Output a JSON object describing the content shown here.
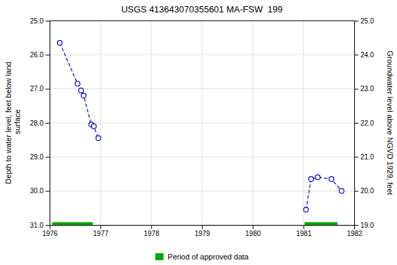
{
  "chart_data": {
    "type": "line",
    "title": "USGS 413643070355601 MA-FSW  199",
    "ylabel": "Depth to water level, feet below land\n surface",
    "y2label": "Groundwater level above NGVD 1929, feet",
    "series": [
      {
        "x": [
          1976.2,
          1976.55,
          1976.62,
          1976.67,
          1976.82,
          1976.87,
          1976.96
        ],
        "values": [
          25.65,
          26.85,
          27.05,
          27.2,
          28.05,
          28.1,
          28.45
        ],
        "color": "#0000cc",
        "marker": "circle-open",
        "line_style": "dashed"
      },
      {
        "x": [
          1981.05,
          1981.15,
          1981.28,
          1981.55,
          1981.75
        ],
        "values": [
          30.55,
          29.65,
          29.6,
          29.65,
          30.0
        ],
        "color": "#0000cc",
        "marker": "circle-open",
        "line_style": "dashed"
      }
    ],
    "xlim": [
      1976.0,
      1982.0
    ],
    "xticks": [
      1976,
      1977,
      1978,
      1979,
      1980,
      1981,
      1982
    ],
    "ylim": [
      31.0,
      25.0
    ],
    "yticks": [
      {
        "value": 25.0,
        "label": "25.0"
      },
      {
        "value": 26.0,
        "label": "26.0"
      },
      {
        "value": 27.0,
        "label": "27.0"
      },
      {
        "value": 28.0,
        "label": "28.0"
      },
      {
        "value": 29.0,
        "label": "29.0"
      },
      {
        "value": 30.0,
        "label": "30.0"
      },
      {
        "value": 31.0,
        "label": "31.0"
      }
    ],
    "y2lim": [
      19.0,
      25.0
    ],
    "y2ticks": [
      {
        "value": 25.0,
        "label": "25.0"
      },
      {
        "value": 24.0,
        "label": "24.0"
      },
      {
        "value": 23.0,
        "label": "23.0"
      },
      {
        "value": 22.0,
        "label": "22.0"
      },
      {
        "value": 21.0,
        "label": "21.0"
      },
      {
        "value": 20.0,
        "label": "20.0"
      },
      {
        "value": 19.0,
        "label": "19.0"
      }
    ],
    "periods": {
      "name": "Period of approved data",
      "color": "#00aa00",
      "y": 31.0,
      "ranges": [
        [
          1976.05,
          1976.85
        ],
        [
          1981.02,
          1981.67
        ]
      ]
    },
    "grid": true,
    "legend": "bottom"
  }
}
